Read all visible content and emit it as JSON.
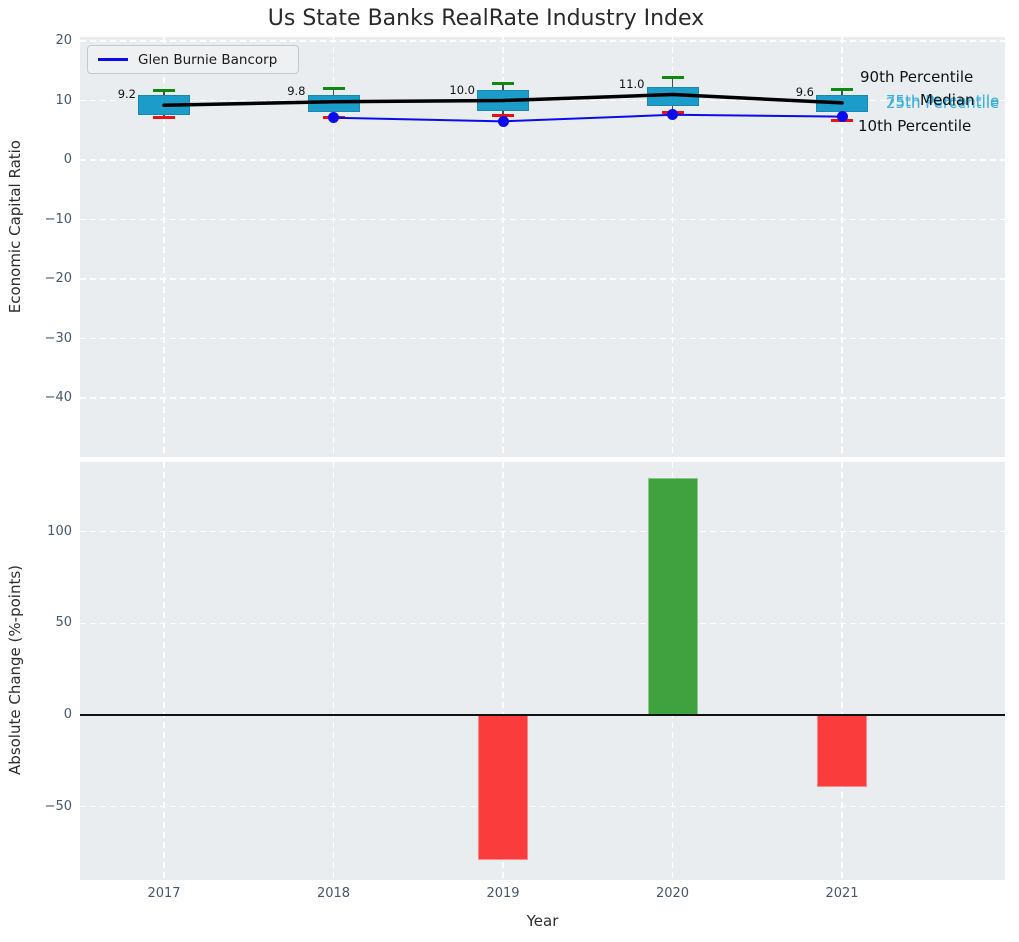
{
  "title": "Us State Banks RealRate Industry Index",
  "legend": {
    "label": "Glen Burnie Bancorp"
  },
  "annotations": {
    "p90": "90th Percentile",
    "p75": "75th Percentile",
    "median": "Median",
    "p25": "25th Percentile",
    "p10": "10th Percentile"
  },
  "colors": {
    "box_fill": "#1b9cc9",
    "whisker_cap_top": "#0f8a0f",
    "whisker_cap_bottom": "#ee1111",
    "median_line": "#000000",
    "company_line": "#0b0bee",
    "bar_positive": "#3fa23f",
    "bar_negative": "#fa3c3c",
    "panel_background": "#e9edef",
    "grid": "#ffffff",
    "tick_label": "#46586b",
    "annotation_cyan": "#3aafdd"
  },
  "chart_data": [
    {
      "type": "boxplot",
      "title": "Us State Banks RealRate Industry Index",
      "ylabel": "Economic Capital Ratio",
      "categories": [
        "2017",
        "2018",
        "2019",
        "2020",
        "2021"
      ],
      "yticks": [
        20,
        10,
        0,
        -10,
        -20,
        -30,
        -40
      ],
      "ylim": [
        -50,
        20.7
      ],
      "grid": "white dashed",
      "legend_position": "upper left",
      "boxes": [
        {
          "year": "2017",
          "p10": 7.1,
          "p25": 7.6,
          "median": 9.2,
          "p75": 11.0,
          "p90": 11.7,
          "median_label": "9.2"
        },
        {
          "year": "2018",
          "p10": 7.2,
          "p25": 8.0,
          "median": 9.8,
          "p75": 11.0,
          "p90": 12.0,
          "median_label": "9.8"
        },
        {
          "year": "2019",
          "p10": 7.5,
          "p25": 8.3,
          "median": 10.0,
          "p75": 11.8,
          "p90": 12.9,
          "median_label": "10.0"
        },
        {
          "year": "2020",
          "p10": 7.9,
          "p25": 9.1,
          "median": 11.0,
          "p75": 12.2,
          "p90": 13.8,
          "median_label": "11.0"
        },
        {
          "year": "2021",
          "p10": 6.6,
          "p25": 8.0,
          "median": 9.6,
          "p75": 11.0,
          "p90": 11.8,
          "median_label": "9.6"
        }
      ],
      "series": [
        {
          "name": "Glen Burnie Bancorp",
          "values": [
            null,
            7.1,
            6.5,
            7.6,
            7.3
          ]
        }
      ]
    },
    {
      "type": "bar",
      "ylabel": "Absolute Change (%-points)",
      "xlabel": "Year",
      "categories": [
        "2017",
        "2018",
        "2019",
        "2020",
        "2021"
      ],
      "values": [
        null,
        null,
        -79,
        129,
        -39
      ],
      "yticks": [
        100,
        50,
        0,
        -50
      ],
      "ylim": [
        -90,
        138
      ]
    }
  ]
}
